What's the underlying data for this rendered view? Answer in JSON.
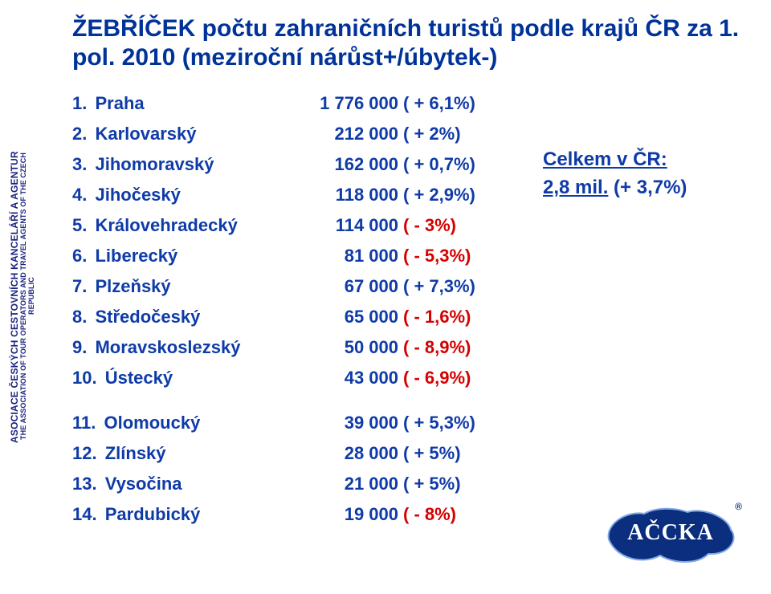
{
  "title": "ŽEBŘÍČEK počtu zahraničních turistů podle krajů ČR za 1. pol. 2010 (meziroční nárůst+/úbytek-)",
  "sidebar": {
    "line1": "ASOCIACE ČESKÝCH CESTOVNÍCH KANCELÁŘÍ A AGENTUR",
    "line2": "THE ASSOCIATION OF TOUR OPERATORS AND TRAVEL AGENTS OF THE CZECH REPUBLIC"
  },
  "colors": {
    "text_primary": "#0f3ba8",
    "title": "#003399",
    "positive": "#0f3ba8",
    "negative": "#d60000",
    "background": "#ffffff"
  },
  "groups": [
    [
      {
        "rank": "1.",
        "region": "Praha",
        "value": "1 776 000",
        "change": "( + 6,1%)",
        "positive": true
      },
      {
        "rank": "2.",
        "region": "Karlovarský",
        "value": "212 000",
        "change": "( + 2%)",
        "positive": true
      },
      {
        "rank": "3.",
        "region": "Jihomoravský",
        "value": "162 000",
        "change": "( + 0,7%)",
        "positive": true
      },
      {
        "rank": "4.",
        "region": "Jihočeský",
        "value": "118 000",
        "change": "( + 2,9%)",
        "positive": true
      },
      {
        "rank": "5.",
        "region": "Královehradecký",
        "value": "114 000",
        "change": "( - 3%)",
        "positive": false
      },
      {
        "rank": "6.",
        "region": "Liberecký",
        "value": "81 000",
        "change": "( - 5,3%)",
        "positive": false
      },
      {
        "rank": "7.",
        "region": "Plzeňský",
        "value": "67 000",
        "change": "( + 7,3%)",
        "positive": true
      },
      {
        "rank": "8.",
        "region": "Středočeský",
        "value": "65 000",
        "change": "( - 1,6%)",
        "positive": false
      },
      {
        "rank": "9.",
        "region": "Moravskoslezský",
        "value": "50 000",
        "change": "( - 8,9%)",
        "positive": false
      },
      {
        "rank": "10.",
        "region": "Ústecký",
        "value": "43 000",
        "change": "( - 6,9%)",
        "positive": false
      }
    ],
    [
      {
        "rank": "11.",
        "region": "Olomoucký",
        "value": "39 000",
        "change": "( + 5,3%)",
        "positive": true
      },
      {
        "rank": "12.",
        "region": "Zlínský",
        "value": "28 000",
        "change": "( + 5%)",
        "positive": true
      },
      {
        "rank": "13.",
        "region": "Vysočina",
        "value": "21 000",
        "change": "( + 5%)",
        "positive": true
      },
      {
        "rank": "14.",
        "region": "Pardubický",
        "value": "19 000",
        "change": "( -  8%)",
        "positive": false
      }
    ]
  ],
  "summary": {
    "line1_label": "Celkem v ČR:",
    "line2_value": "2,8 mil.",
    "line2_change": "(+ 3,7%)"
  },
  "logo": {
    "text": "AČCKA",
    "registered": "®",
    "blob_fill": "#0b2e7e",
    "blob_stroke": "#7fa8e6"
  }
}
